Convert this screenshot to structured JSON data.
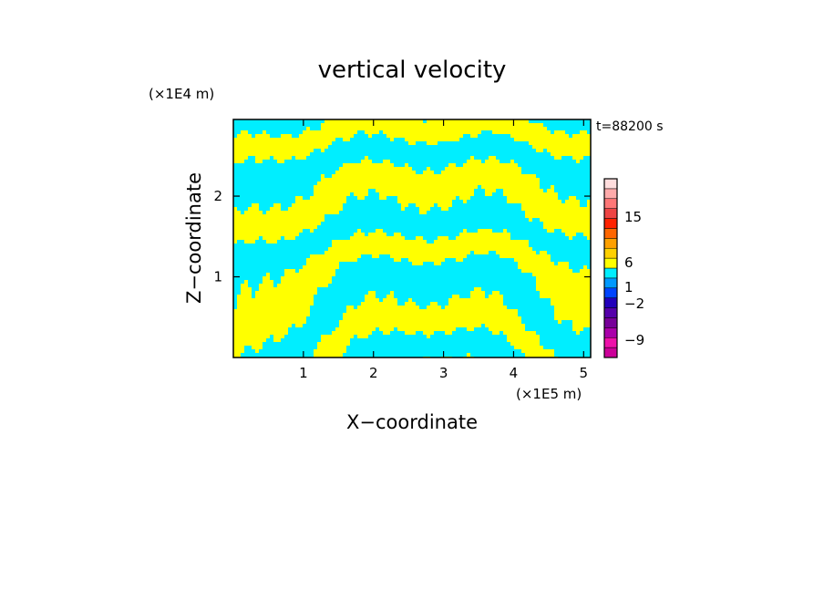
{
  "chart_data": {
    "type": "heatmap",
    "title": "vertical velocity",
    "xlabel": "X−coordinate",
    "ylabel": "Z−coordinate",
    "x_unit": "(×1E5 m)",
    "y_unit": "(×1E4 m)",
    "time_label": "t=88200 s",
    "xlim": [
      0,
      5.1
    ],
    "ylim": [
      0,
      2.95
    ],
    "x_ticks": [
      1,
      2,
      3,
      4,
      5
    ],
    "y_ticks": [
      1,
      2
    ],
    "colorbar": {
      "tick_labels": [
        "15",
        "6",
        "1",
        "−2",
        "−9"
      ],
      "colors": [
        "#cc0099",
        "#ee11aa",
        "#aa00aa",
        "#770099",
        "#5500aa",
        "#2200bb",
        "#0044ff",
        "#0099ff",
        "#00eeff",
        "#ffff00",
        "#ffd000",
        "#ffa000",
        "#ff6600",
        "#ff2200",
        "#ee4444",
        "#ff7777",
        "#ffaaaa",
        "#ffdddd"
      ]
    },
    "field_colors": {
      "positive": "#ffff00",
      "negative": "#00eeff"
    }
  }
}
